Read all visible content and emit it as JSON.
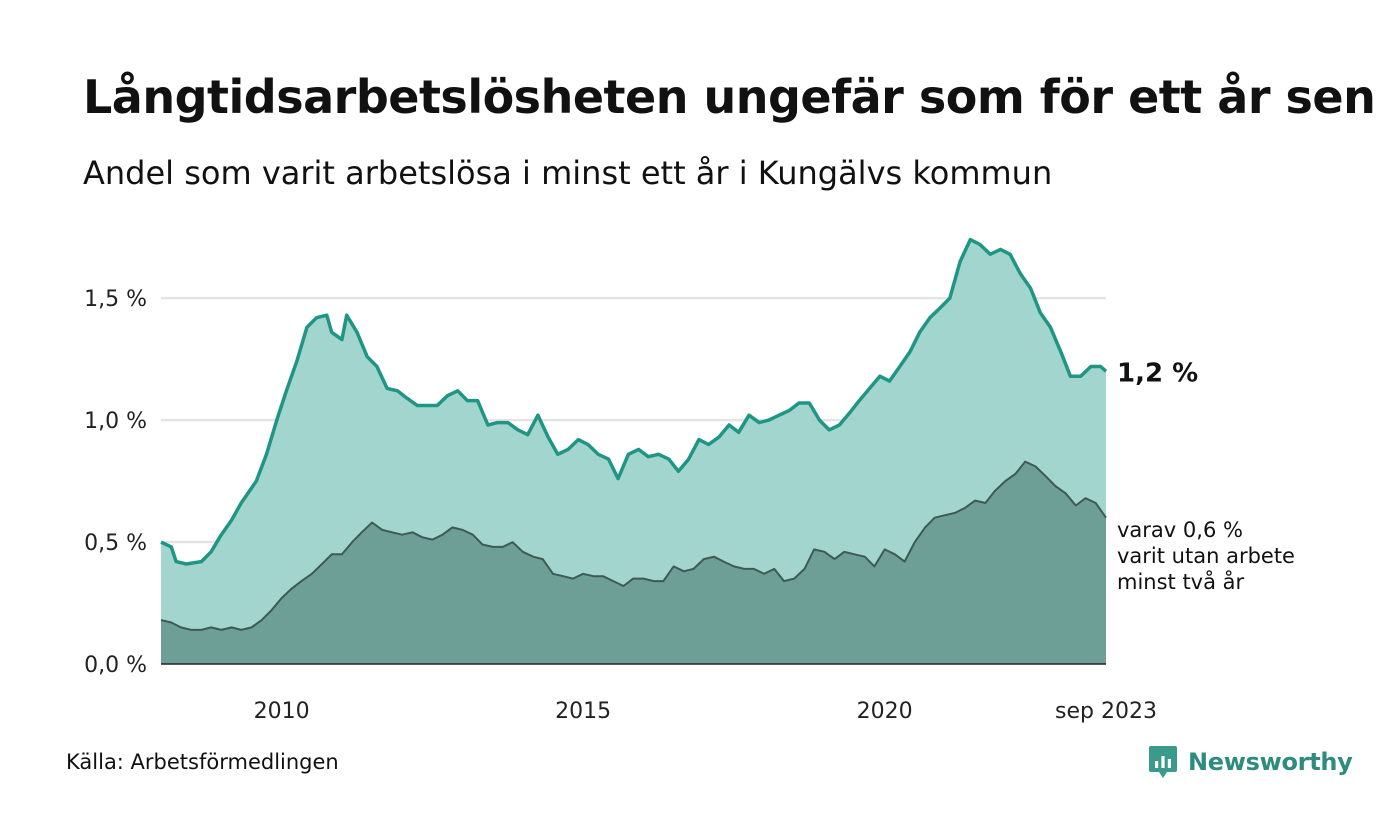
{
  "header": {
    "title": "Långtidsarbetslösheten ungefär som för ett år sen",
    "subtitle": "Andel som varit arbetslösa i minst ett år i Kungälvs kommun"
  },
  "footer": {
    "source": "Källa: Arbetsförmedlingen",
    "brand": "Newsworthy"
  },
  "colors": {
    "one_year_line": "#1f9684",
    "one_year_fill": "#a3d5cf",
    "two_year_line": "#3d5a53",
    "two_year_fill": "#6e9f96",
    "grid": "#e4e4e4",
    "brand": "#2e8c7e"
  },
  "chart_data": {
    "type": "area",
    "title": "Långtidsarbetslösheten ungefär som för ett år sen",
    "subtitle": "Andel som varit arbetslösa i minst ett år i Kungälvs kommun",
    "xlabel": "",
    "ylabel": "",
    "x_range": [
      2008.0,
      2023.67
    ],
    "ylim": [
      0,
      1.8
    ],
    "y_ticks": [
      {
        "value": 0.0,
        "label": "0,0 %"
      },
      {
        "value": 0.5,
        "label": "0,5 %"
      },
      {
        "value": 1.0,
        "label": "1,0 %"
      },
      {
        "value": 1.5,
        "label": "1,5 %"
      }
    ],
    "x_ticks": [
      {
        "value": 2010,
        "label": "2010"
      },
      {
        "value": 2015,
        "label": "2015"
      },
      {
        "value": 2020,
        "label": "2020"
      },
      {
        "value": 2023.67,
        "label": "sep 2023"
      }
    ],
    "grid": true,
    "series": [
      {
        "name": "Arbetslösa minst ett år",
        "end_label": "1,2 %",
        "points": [
          [
            2008.0,
            0.5
          ],
          [
            2008.17,
            0.48
          ],
          [
            2008.25,
            0.42
          ],
          [
            2008.42,
            0.41
          ],
          [
            2008.67,
            0.42
          ],
          [
            2008.83,
            0.46
          ],
          [
            2009.0,
            0.53
          ],
          [
            2009.17,
            0.59
          ],
          [
            2009.33,
            0.66
          ],
          [
            2009.58,
            0.75
          ],
          [
            2009.75,
            0.86
          ],
          [
            2009.92,
            1.0
          ],
          [
            2010.08,
            1.12
          ],
          [
            2010.25,
            1.24
          ],
          [
            2010.42,
            1.38
          ],
          [
            2010.58,
            1.42
          ],
          [
            2010.75,
            1.43
          ],
          [
            2010.83,
            1.36
          ],
          [
            2011.0,
            1.33
          ],
          [
            2011.08,
            1.43
          ],
          [
            2011.25,
            1.36
          ],
          [
            2011.42,
            1.26
          ],
          [
            2011.58,
            1.22
          ],
          [
            2011.75,
            1.13
          ],
          [
            2011.92,
            1.12
          ],
          [
            2012.08,
            1.09
          ],
          [
            2012.25,
            1.06
          ],
          [
            2012.42,
            1.06
          ],
          [
            2012.58,
            1.06
          ],
          [
            2012.75,
            1.1
          ],
          [
            2012.92,
            1.12
          ],
          [
            2013.08,
            1.08
          ],
          [
            2013.25,
            1.08
          ],
          [
            2013.42,
            0.98
          ],
          [
            2013.58,
            0.99
          ],
          [
            2013.75,
            0.99
          ],
          [
            2013.92,
            0.96
          ],
          [
            2014.08,
            0.94
          ],
          [
            2014.25,
            1.02
          ],
          [
            2014.42,
            0.93
          ],
          [
            2014.58,
            0.86
          ],
          [
            2014.75,
            0.88
          ],
          [
            2014.92,
            0.92
          ],
          [
            2015.08,
            0.9
          ],
          [
            2015.25,
            0.86
          ],
          [
            2015.42,
            0.84
          ],
          [
            2015.58,
            0.76
          ],
          [
            2015.75,
            0.86
          ],
          [
            2015.92,
            0.88
          ],
          [
            2016.08,
            0.85
          ],
          [
            2016.25,
            0.86
          ],
          [
            2016.42,
            0.84
          ],
          [
            2016.58,
            0.79
          ],
          [
            2016.75,
            0.84
          ],
          [
            2016.92,
            0.92
          ],
          [
            2017.08,
            0.9
          ],
          [
            2017.25,
            0.93
          ],
          [
            2017.42,
            0.98
          ],
          [
            2017.58,
            0.95
          ],
          [
            2017.75,
            1.02
          ],
          [
            2017.92,
            0.99
          ],
          [
            2018.08,
            1.0
          ],
          [
            2018.25,
            1.02
          ],
          [
            2018.42,
            1.04
          ],
          [
            2018.58,
            1.07
          ],
          [
            2018.75,
            1.07
          ],
          [
            2018.92,
            1.0
          ],
          [
            2019.08,
            0.96
          ],
          [
            2019.25,
            0.98
          ],
          [
            2019.42,
            1.03
          ],
          [
            2019.58,
            1.08
          ],
          [
            2019.75,
            1.13
          ],
          [
            2019.92,
            1.18
          ],
          [
            2020.08,
            1.16
          ],
          [
            2020.25,
            1.22
          ],
          [
            2020.42,
            1.28
          ],
          [
            2020.58,
            1.36
          ],
          [
            2020.75,
            1.42
          ],
          [
            2020.92,
            1.46
          ],
          [
            2021.08,
            1.5
          ],
          [
            2021.25,
            1.65
          ],
          [
            2021.42,
            1.74
          ],
          [
            2021.58,
            1.72
          ],
          [
            2021.75,
            1.68
          ],
          [
            2021.92,
            1.7
          ],
          [
            2022.08,
            1.68
          ],
          [
            2022.25,
            1.6
          ],
          [
            2022.42,
            1.54
          ],
          [
            2022.58,
            1.44
          ],
          [
            2022.75,
            1.38
          ],
          [
            2022.92,
            1.28
          ],
          [
            2023.08,
            1.18
          ],
          [
            2023.25,
            1.18
          ],
          [
            2023.42,
            1.22
          ],
          [
            2023.58,
            1.22
          ],
          [
            2023.67,
            1.2
          ]
        ]
      },
      {
        "name": "Varav arbetslösa minst två år",
        "end_label": [
          "varav 0,6 %",
          "varit utan arbete",
          "minst två år"
        ],
        "points": [
          [
            2008.0,
            0.18
          ],
          [
            2008.17,
            0.17
          ],
          [
            2008.33,
            0.15
          ],
          [
            2008.5,
            0.14
          ],
          [
            2008.67,
            0.14
          ],
          [
            2008.83,
            0.15
          ],
          [
            2009.0,
            0.14
          ],
          [
            2009.17,
            0.15
          ],
          [
            2009.33,
            0.14
          ],
          [
            2009.5,
            0.15
          ],
          [
            2009.67,
            0.18
          ],
          [
            2009.83,
            0.22
          ],
          [
            2010.0,
            0.27
          ],
          [
            2010.17,
            0.31
          ],
          [
            2010.33,
            0.34
          ],
          [
            2010.5,
            0.37
          ],
          [
            2010.67,
            0.41
          ],
          [
            2010.83,
            0.45
          ],
          [
            2011.0,
            0.45
          ],
          [
            2011.17,
            0.5
          ],
          [
            2011.33,
            0.54
          ],
          [
            2011.5,
            0.58
          ],
          [
            2011.67,
            0.55
          ],
          [
            2011.83,
            0.54
          ],
          [
            2012.0,
            0.53
          ],
          [
            2012.17,
            0.54
          ],
          [
            2012.33,
            0.52
          ],
          [
            2012.5,
            0.51
          ],
          [
            2012.67,
            0.53
          ],
          [
            2012.83,
            0.56
          ],
          [
            2013.0,
            0.55
          ],
          [
            2013.17,
            0.53
          ],
          [
            2013.33,
            0.49
          ],
          [
            2013.5,
            0.48
          ],
          [
            2013.67,
            0.48
          ],
          [
            2013.83,
            0.5
          ],
          [
            2014.0,
            0.46
          ],
          [
            2014.17,
            0.44
          ],
          [
            2014.33,
            0.43
          ],
          [
            2014.5,
            0.37
          ],
          [
            2014.67,
            0.36
          ],
          [
            2014.83,
            0.35
          ],
          [
            2015.0,
            0.37
          ],
          [
            2015.17,
            0.36
          ],
          [
            2015.33,
            0.36
          ],
          [
            2015.5,
            0.34
          ],
          [
            2015.67,
            0.32
          ],
          [
            2015.83,
            0.35
          ],
          [
            2016.0,
            0.35
          ],
          [
            2016.17,
            0.34
          ],
          [
            2016.33,
            0.34
          ],
          [
            2016.5,
            0.4
          ],
          [
            2016.67,
            0.38
          ],
          [
            2016.83,
            0.39
          ],
          [
            2017.0,
            0.43
          ],
          [
            2017.17,
            0.44
          ],
          [
            2017.33,
            0.42
          ],
          [
            2017.5,
            0.4
          ],
          [
            2017.67,
            0.39
          ],
          [
            2017.83,
            0.39
          ],
          [
            2018.0,
            0.37
          ],
          [
            2018.17,
            0.39
          ],
          [
            2018.33,
            0.34
          ],
          [
            2018.5,
            0.35
          ],
          [
            2018.67,
            0.39
          ],
          [
            2018.83,
            0.47
          ],
          [
            2019.0,
            0.46
          ],
          [
            2019.17,
            0.43
          ],
          [
            2019.33,
            0.46
          ],
          [
            2019.5,
            0.45
          ],
          [
            2019.67,
            0.44
          ],
          [
            2019.83,
            0.4
          ],
          [
            2020.0,
            0.47
          ],
          [
            2020.17,
            0.45
          ],
          [
            2020.33,
            0.42
          ],
          [
            2020.5,
            0.5
          ],
          [
            2020.67,
            0.56
          ],
          [
            2020.83,
            0.6
          ],
          [
            2021.0,
            0.61
          ],
          [
            2021.17,
            0.62
          ],
          [
            2021.33,
            0.64
          ],
          [
            2021.5,
            0.67
          ],
          [
            2021.67,
            0.66
          ],
          [
            2021.83,
            0.71
          ],
          [
            2022.0,
            0.75
          ],
          [
            2022.17,
            0.78
          ],
          [
            2022.33,
            0.83
          ],
          [
            2022.5,
            0.81
          ],
          [
            2022.67,
            0.77
          ],
          [
            2022.83,
            0.73
          ],
          [
            2023.0,
            0.7
          ],
          [
            2023.17,
            0.65
          ],
          [
            2023.33,
            0.68
          ],
          [
            2023.5,
            0.66
          ],
          [
            2023.67,
            0.6
          ]
        ]
      }
    ]
  }
}
